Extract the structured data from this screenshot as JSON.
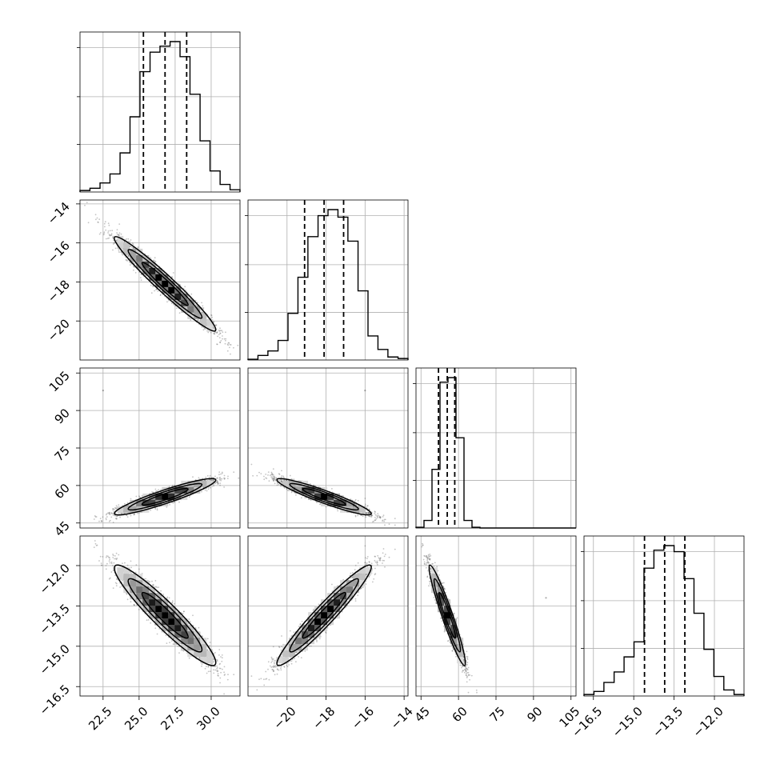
{
  "chart_data": {
    "type": "corner",
    "grid": true,
    "parameters": [
      {
        "ticks": [
          22.5,
          25.0,
          27.5,
          30.0
        ],
        "tick_labels": [
          "22.5",
          "25.0",
          "27.5",
          "30.0"
        ],
        "range": [
          20.9,
          32.0
        ],
        "quantiles": [
          25.3,
          26.8,
          28.3
        ],
        "hist_bins": [
          20.9,
          21.59,
          22.29,
          22.98,
          23.68,
          24.37,
          25.06,
          25.76,
          26.45,
          27.15,
          27.84,
          28.53,
          29.23,
          29.92,
          30.62,
          31.31,
          32.0
        ],
        "hist_heights": [
          0.01,
          0.025,
          0.06,
          0.12,
          0.26,
          0.5,
          0.8,
          0.93,
          0.97,
          1.0,
          0.9,
          0.65,
          0.34,
          0.14,
          0.05,
          0.015
        ]
      },
      {
        "ticks": [
          -20,
          -18,
          -16,
          -14
        ],
        "tick_labels": [
          "−20",
          "−18",
          "−16",
          "−14"
        ],
        "range": [
          -22.0,
          -13.8
        ],
        "quantiles": [
          -19.1,
          -18.1,
          -17.1
        ],
        "hist_bins": [
          -22.0,
          -21.49,
          -20.98,
          -20.46,
          -19.95,
          -19.44,
          -18.93,
          -18.41,
          -17.9,
          -17.39,
          -16.88,
          -16.36,
          -15.85,
          -15.34,
          -14.83,
          -14.31,
          -13.8
        ],
        "hist_heights": [
          0.005,
          0.03,
          0.06,
          0.13,
          0.31,
          0.55,
          0.82,
          0.96,
          1.0,
          0.95,
          0.79,
          0.46,
          0.16,
          0.07,
          0.02,
          0.01
        ]
      },
      {
        "ticks": [
          45,
          60,
          75,
          90,
          105
        ],
        "tick_labels": [
          "45",
          "60",
          "75",
          "90",
          "105"
        ],
        "range": [
          43.0,
          107.0
        ],
        "quantiles": [
          52.0,
          55.5,
          58.5
        ],
        "hist_bins": [
          43.0,
          46.2,
          49.4,
          52.6,
          55.8,
          59.0,
          62.2,
          65.4,
          68.6,
          71.8,
          75.0,
          78.2,
          81.4,
          84.6,
          87.8,
          91.0,
          94.2,
          97.4,
          100.6,
          103.8,
          107.0
        ],
        "hist_heights": [
          0.005,
          0.05,
          0.39,
          0.97,
          1.0,
          0.6,
          0.05,
          0.005,
          0,
          0,
          0,
          0,
          0,
          0,
          0,
          0,
          0,
          0,
          0,
          0
        ]
      },
      {
        "ticks": [
          -16.5,
          -15.0,
          -13.5,
          -12.0
        ],
        "tick_labels": [
          "−16.5",
          "−15.0",
          "−13.5",
          "−12.0"
        ],
        "range": [
          -16.85,
          -10.9
        ],
        "quantiles": [
          -14.6,
          -13.85,
          -13.1
        ],
        "hist_bins": [
          -16.85,
          -16.48,
          -16.11,
          -15.73,
          -15.36,
          -14.99,
          -14.62,
          -14.25,
          -13.88,
          -13.5,
          -13.13,
          -12.76,
          -12.39,
          -12.02,
          -11.65,
          -11.27,
          -10.9
        ],
        "hist_heights": [
          0.01,
          0.03,
          0.09,
          0.16,
          0.26,
          0.36,
          0.85,
          0.97,
          1.0,
          0.96,
          0.78,
          0.55,
          0.31,
          0.13,
          0.04,
          0.01
        ]
      }
    ],
    "pairs": [
      {
        "x": 0,
        "y": 1,
        "mean": [
          26.8,
          -18.1
        ],
        "sd": [
          1.6,
          1.1
        ],
        "corr": -0.97,
        "points": 2600
      },
      {
        "x": 0,
        "y": 2,
        "mean": [
          26.8,
          55.5
        ],
        "sd": [
          1.6,
          3.3
        ],
        "corr": 0.92,
        "points": 2600
      },
      {
        "x": 1,
        "y": 2,
        "mean": [
          -18.1,
          55.5
        ],
        "sd": [
          1.1,
          3.3
        ],
        "corr": -0.93,
        "points": 2600
      },
      {
        "x": 0,
        "y": 3,
        "mean": [
          26.8,
          -13.85
        ],
        "sd": [
          1.6,
          0.85
        ],
        "corr": -0.94,
        "points": 2600
      },
      {
        "x": 1,
        "y": 3,
        "mean": [
          -18.1,
          -13.85
        ],
        "sd": [
          1.1,
          0.85
        ],
        "corr": 0.96,
        "points": 2600
      },
      {
        "x": 2,
        "y": 3,
        "mean": [
          55.5,
          -13.85
        ],
        "sd": [
          3.3,
          0.85
        ],
        "corr": -0.95,
        "points": 2600
      }
    ],
    "outliers": [
      {
        "x": 0,
        "y": 2,
        "value": [
          22.5,
          98.0
        ]
      },
      {
        "x": 1,
        "y": 2,
        "value": [
          -16.0,
          98.0
        ]
      },
      {
        "x": 2,
        "y": 3,
        "value": [
          95.0,
          -13.2
        ]
      }
    ],
    "contour_levels": [
      1,
      1.6,
      2.2
    ],
    "colors": {
      "hist": "#000000",
      "points": "#555555",
      "contour": "#000000"
    }
  }
}
